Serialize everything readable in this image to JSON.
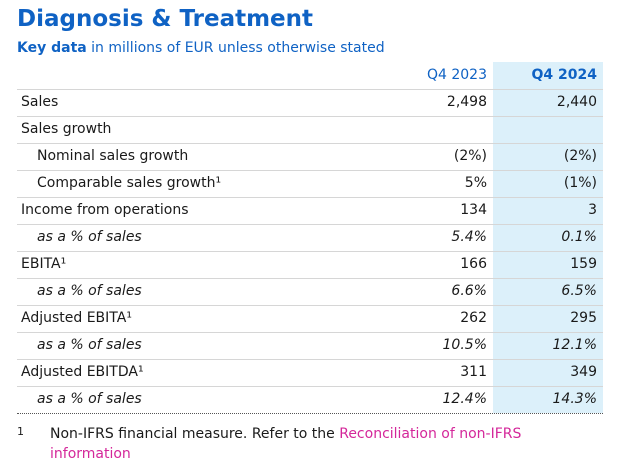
{
  "header": {
    "title": "Diagnosis & Treatment",
    "subtitle_bold": "Key data",
    "subtitle": "in millions of EUR unless otherwise stated"
  },
  "table": {
    "columns": [
      "Q4 2023",
      "Q4 2024"
    ],
    "highlight_column": 1,
    "rows": [
      {
        "label": "Sales",
        "values": [
          "2,498",
          "2,440"
        ]
      },
      {
        "label": "Sales growth"
      },
      {
        "label": "Nominal sales growth",
        "indent": true,
        "values": [
          "(2%)",
          "(2%)"
        ]
      },
      {
        "label": "Comparable sales growth¹",
        "indent": true,
        "values": [
          "5%",
          "(1%)"
        ]
      },
      {
        "label": "Income from operations",
        "values": [
          "134",
          "3"
        ]
      },
      {
        "label": "as a % of sales",
        "indent": true,
        "italic": true,
        "values": [
          "5.4%",
          "0.1%"
        ]
      },
      {
        "label": "EBITA¹",
        "values": [
          "166",
          "159"
        ]
      },
      {
        "label": "as a % of sales",
        "indent": true,
        "italic": true,
        "values": [
          "6.6%",
          "6.5%"
        ]
      },
      {
        "label": "Adjusted EBITA¹",
        "values": [
          "262",
          "295"
        ]
      },
      {
        "label": "as a % of sales",
        "indent": true,
        "italic": true,
        "values": [
          "10.5%",
          "12.1%"
        ]
      },
      {
        "label": "Adjusted EBITDA¹",
        "values": [
          "311",
          "349"
        ]
      },
      {
        "label": "as a % of sales",
        "indent": true,
        "italic": true,
        "values": [
          "12.4%",
          "14.3%"
        ]
      }
    ]
  },
  "footnote": {
    "marker": "1",
    "text": "Non-IFRS financial measure. Refer to the",
    "link": "Reconciliation of non-IFRS information"
  }
}
